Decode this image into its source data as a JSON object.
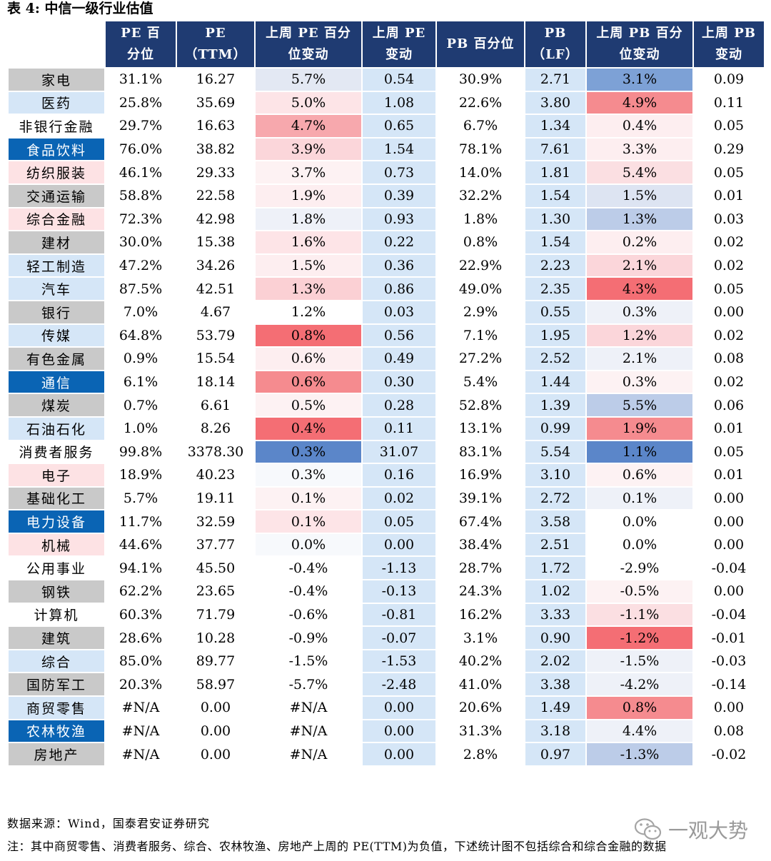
{
  "title": "表 4:  中信一级行业估值",
  "headers": [
    "",
    "PE 百\n分位",
    "PE\n（TTM）",
    "上周 PE 百分\n位变动",
    "上周 PE\n变动",
    "PB 百分位",
    "PB\n（LF）",
    "上周 PB 百分\n位变动",
    "上周 PB\n变动"
  ],
  "colors": {
    "header_bg": "#1f3b72",
    "name_gray": "#c9c9c9",
    "name_light": "#d5e6f7",
    "name_pink": "#fde2e4",
    "name_dark": "#0a64b4",
    "col_light_blue": "#d5e6f7"
  },
  "rows": [
    {
      "name": "家电",
      "name_style": "gray",
      "pe_pct": "31.1%",
      "pe": "16.27",
      "pe_pct_chg": "5.7%",
      "pe_chg": "0.54",
      "pb_pct": "30.9%",
      "pb": "2.71",
      "pb_pct_chg": "3.1%",
      "pb_chg": "0.09",
      "pe_pct_chg_color": "#e3e8f3",
      "pb_pct_chg_color": "#7da1d6"
    },
    {
      "name": "医药",
      "name_style": "light",
      "pe_pct": "25.8%",
      "pe": "35.69",
      "pe_pct_chg": "5.0%",
      "pe_chg": "1.08",
      "pb_pct": "22.6%",
      "pb": "3.80",
      "pb_pct_chg": "4.9%",
      "pb_chg": "0.11",
      "pe_pct_chg_color": "#fde4e7",
      "pb_pct_chg_color": "#f58b8f"
    },
    {
      "name": "非银行金融",
      "name_style": "white",
      "pe_pct": "29.7%",
      "pe": "16.63",
      "pe_pct_chg": "4.7%",
      "pe_chg": "0.65",
      "pb_pct": "6.7%",
      "pb": "1.34",
      "pb_pct_chg": "0.4%",
      "pb_chg": "0.05",
      "pe_pct_chg_color": "#f7a8ad",
      "pb_pct_chg_color": "#fdeef0"
    },
    {
      "name": "食品饮料",
      "name_style": "dark",
      "pe_pct": "76.0%",
      "pe": "38.82",
      "pe_pct_chg": "3.9%",
      "pe_chg": "1.54",
      "pb_pct": "78.1%",
      "pb": "7.61",
      "pb_pct_chg": "3.3%",
      "pb_chg": "0.29",
      "pe_pct_chg_color": "#fbd6da",
      "pb_pct_chg_color": "#fdeef0"
    },
    {
      "name": "纺织服装",
      "name_style": "pink",
      "pe_pct": "46.1%",
      "pe": "29.33",
      "pe_pct_chg": "3.7%",
      "pe_chg": "0.73",
      "pb_pct": "14.0%",
      "pb": "1.81",
      "pb_pct_chg": "5.4%",
      "pb_chg": "0.05",
      "pe_pct_chg_color": "#fdf2f3",
      "pb_pct_chg_color": "#fbdfe2"
    },
    {
      "name": "交通运输",
      "name_style": "gray",
      "pe_pct": "58.8%",
      "pe": "22.58",
      "pe_pct_chg": "1.9%",
      "pe_chg": "0.39",
      "pb_pct": "32.2%",
      "pb": "1.54",
      "pb_pct_chg": "1.5%",
      "pb_chg": "0.01",
      "pe_pct_chg_color": "#fdeef0",
      "pb_pct_chg_color": "#dde4f2"
    },
    {
      "name": "综合金融",
      "name_style": "pink",
      "pe_pct": "72.3%",
      "pe": "42.98",
      "pe_pct_chg": "1.8%",
      "pe_chg": "0.93",
      "pb_pct": "1.8%",
      "pb": "1.30",
      "pb_pct_chg": "1.3%",
      "pb_chg": "0.03",
      "pe_pct_chg_color": "#eef1f8",
      "pb_pct_chg_color": "#bccce8"
    },
    {
      "name": "建材",
      "name_style": "gray",
      "pe_pct": "30.0%",
      "pe": "15.38",
      "pe_pct_chg": "1.6%",
      "pe_chg": "0.22",
      "pb_pct": "0.8%",
      "pb": "1.54",
      "pb_pct_chg": "0.2%",
      "pb_chg": "0.02",
      "pe_pct_chg_color": "#fde4e7",
      "pb_pct_chg_color": "#fdeef0"
    },
    {
      "name": "轻工制造",
      "name_style": "light",
      "pe_pct": "47.2%",
      "pe": "34.26",
      "pe_pct_chg": "1.5%",
      "pe_chg": "0.36",
      "pb_pct": "22.9%",
      "pb": "2.23",
      "pb_pct_chg": "2.1%",
      "pb_chg": "0.02",
      "pe_pct_chg_color": "#fdeef0",
      "pb_pct_chg_color": "#fbd6da"
    },
    {
      "name": "汽车",
      "name_style": "light",
      "pe_pct": "87.5%",
      "pe": "42.51",
      "pe_pct_chg": "1.3%",
      "pe_chg": "0.86",
      "pb_pct": "49.0%",
      "pb": "2.35",
      "pb_pct_chg": "4.3%",
      "pb_chg": "0.05",
      "pe_pct_chg_color": "#fbd0d4",
      "pb_pct_chg_color": "#f46e74"
    },
    {
      "name": "银行",
      "name_style": "gray",
      "pe_pct": "7.0%",
      "pe": "4.67",
      "pe_pct_chg": "1.2%",
      "pe_chg": "0.03",
      "pb_pct": "2.9%",
      "pb": "0.55",
      "pb_pct_chg": "0.3%",
      "pb_chg": "0.00",
      "pe_pct_chg_color": "#ffffff",
      "pb_pct_chg_color": "#eef1f8"
    },
    {
      "name": "传媒",
      "name_style": "light",
      "pe_pct": "64.8%",
      "pe": "53.79",
      "pe_pct_chg": "0.8%",
      "pe_chg": "0.56",
      "pb_pct": "7.1%",
      "pb": "1.95",
      "pb_pct_chg": "1.2%",
      "pb_chg": "0.02",
      "pe_pct_chg_color": "#f46e74",
      "pb_pct_chg_color": "#fbd6da"
    },
    {
      "name": "有色金属",
      "name_style": "gray",
      "pe_pct": "0.9%",
      "pe": "15.54",
      "pe_pct_chg": "0.6%",
      "pe_chg": "0.49",
      "pb_pct": "27.2%",
      "pb": "2.52",
      "pb_pct_chg": "2.1%",
      "pb_chg": "0.08",
      "pe_pct_chg_color": "#fdeef0",
      "pb_pct_chg_color": "#eef1f8"
    },
    {
      "name": "通信",
      "name_style": "dark",
      "pe_pct": "6.1%",
      "pe": "18.14",
      "pe_pct_chg": "0.6%",
      "pe_chg": "0.30",
      "pb_pct": "5.4%",
      "pb": "1.44",
      "pb_pct_chg": "0.3%",
      "pb_chg": "0.02",
      "pe_pct_chg_color": "#f58b8f",
      "pb_pct_chg_color": "#fdf2f3"
    },
    {
      "name": "煤炭",
      "name_style": "gray",
      "pe_pct": "0.7%",
      "pe": "6.61",
      "pe_pct_chg": "0.5%",
      "pe_chg": "0.28",
      "pb_pct": "52.8%",
      "pb": "1.39",
      "pb_pct_chg": "5.5%",
      "pb_chg": "0.06",
      "pe_pct_chg_color": "#fdf2f3",
      "pb_pct_chg_color": "#bccce8"
    },
    {
      "name": "石油石化",
      "name_style": "light",
      "pe_pct": "1.0%",
      "pe": "8.26",
      "pe_pct_chg": "0.4%",
      "pe_chg": "0.11",
      "pb_pct": "13.1%",
      "pb": "0.99",
      "pb_pct_chg": "1.9%",
      "pb_chg": "0.01",
      "pe_pct_chg_color": "#f46e74",
      "pb_pct_chg_color": "#f58b8f"
    },
    {
      "name": "消费者服务",
      "name_style": "white",
      "pe_pct": "99.8%",
      "pe": "3378.30",
      "pe_pct_chg": "0.3%",
      "pe_chg": "31.07",
      "pb_pct": "83.1%",
      "pb": "5.54",
      "pb_pct_chg": "1.1%",
      "pb_chg": "0.05",
      "pe_pct_chg_color": "#5b86c9",
      "pb_pct_chg_color": "#5b86c9"
    },
    {
      "name": "电子",
      "name_style": "pink",
      "pe_pct": "18.9%",
      "pe": "40.23",
      "pe_pct_chg": "0.3%",
      "pe_chg": "0.16",
      "pb_pct": "16.9%",
      "pb": "3.10",
      "pb_pct_chg": "0.6%",
      "pb_chg": "0.01",
      "pe_pct_chg_color": "#f7f9fc",
      "pb_pct_chg_color": "#fdf2f3"
    },
    {
      "name": "基础化工",
      "name_style": "gray",
      "pe_pct": "5.7%",
      "pe": "19.11",
      "pe_pct_chg": "0.1%",
      "pe_chg": "0.02",
      "pb_pct": "39.1%",
      "pb": "2.72",
      "pb_pct_chg": "0.1%",
      "pb_chg": "0.00",
      "pe_pct_chg_color": "#fdf2f3",
      "pb_pct_chg_color": "#eef1f8"
    },
    {
      "name": "电力设备",
      "name_style": "dark",
      "pe_pct": "11.7%",
      "pe": "32.59",
      "pe_pct_chg": "0.1%",
      "pe_chg": "0.05",
      "pb_pct": "67.4%",
      "pb": "3.58",
      "pb_pct_chg": "0.0%",
      "pb_chg": "0.00",
      "pe_pct_chg_color": "#fde4e7",
      "pb_pct_chg_color": "#ffffff"
    },
    {
      "name": "机械",
      "name_style": "pink",
      "pe_pct": "44.6%",
      "pe": "37.77",
      "pe_pct_chg": "0.0%",
      "pe_chg": "0.00",
      "pb_pct": "38.4%",
      "pb": "2.51",
      "pb_pct_chg": "0.0%",
      "pb_chg": "0.00",
      "pe_pct_chg_color": "#f7f9fc",
      "pb_pct_chg_color": "#ffffff"
    },
    {
      "name": "公用事业",
      "name_style": "white",
      "pe_pct": "94.1%",
      "pe": "45.50",
      "pe_pct_chg": "-0.4%",
      "pe_chg": "-1.13",
      "pb_pct": "28.7%",
      "pb": "1.72",
      "pb_pct_chg": "-2.9%",
      "pb_chg": "-0.04",
      "pe_pct_chg_color": "#ffffff",
      "pb_pct_chg_color": "#ffffff"
    },
    {
      "name": "钢铁",
      "name_style": "gray",
      "pe_pct": "62.2%",
      "pe": "23.65",
      "pe_pct_chg": "-0.4%",
      "pe_chg": "-0.13",
      "pb_pct": "24.3%",
      "pb": "1.02",
      "pb_pct_chg": "-0.5%",
      "pb_chg": "0.00",
      "pe_pct_chg_color": "#ffffff",
      "pb_pct_chg_color": "#fdf2f3"
    },
    {
      "name": "计算机",
      "name_style": "white",
      "pe_pct": "60.3%",
      "pe": "71.79",
      "pe_pct_chg": "-0.6%",
      "pe_chg": "-0.81",
      "pb_pct": "16.2%",
      "pb": "3.33",
      "pb_pct_chg": "-1.1%",
      "pb_chg": "-0.04",
      "pe_pct_chg_color": "#ffffff",
      "pb_pct_chg_color": "#fbdfe2"
    },
    {
      "name": "建筑",
      "name_style": "gray",
      "pe_pct": "28.6%",
      "pe": "10.28",
      "pe_pct_chg": "-0.9%",
      "pe_chg": "-0.07",
      "pb_pct": "3.1%",
      "pb": "0.90",
      "pb_pct_chg": "-1.2%",
      "pb_chg": "-0.01",
      "pe_pct_chg_color": "#ffffff",
      "pb_pct_chg_color": "#f46e74"
    },
    {
      "name": "综合",
      "name_style": "light",
      "pe_pct": "85.0%",
      "pe": "89.77",
      "pe_pct_chg": "-1.5%",
      "pe_chg": "-1.53",
      "pb_pct": "40.2%",
      "pb": "2.02",
      "pb_pct_chg": "-1.5%",
      "pb_chg": "-0.03",
      "pe_pct_chg_color": "#ffffff",
      "pb_pct_chg_color": "#eef1f8"
    },
    {
      "name": "国防军工",
      "name_style": "gray",
      "pe_pct": "20.3%",
      "pe": "58.97",
      "pe_pct_chg": "-5.7%",
      "pe_chg": "-2.48",
      "pb_pct": "41.0%",
      "pb": "3.38",
      "pb_pct_chg": "-4.2%",
      "pb_chg": "-0.14",
      "pe_pct_chg_color": "#ffffff",
      "pb_pct_chg_color": "#eef1f8"
    },
    {
      "name": "商贸零售",
      "name_style": "light",
      "pe_pct": "#N/A",
      "pe": "0.00",
      "pe_pct_chg": "#N/A",
      "pe_chg": "0.00",
      "pb_pct": "20.6%",
      "pb": "1.49",
      "pb_pct_chg": "0.8%",
      "pb_chg": "0.00",
      "pe_pct_chg_color": "#ffffff",
      "pb_pct_chg_color": "#f58b8f"
    },
    {
      "name": "农林牧渔",
      "name_style": "dark",
      "pe_pct": "#N/A",
      "pe": "0.00",
      "pe_pct_chg": "#N/A",
      "pe_chg": "0.00",
      "pb_pct": "31.3%",
      "pb": "3.18",
      "pb_pct_chg": "4.4%",
      "pb_chg": "0.08",
      "pe_pct_chg_color": "#ffffff",
      "pb_pct_chg_color": "#eef1f8"
    },
    {
      "name": "房地产",
      "name_style": "gray",
      "pe_pct": "#N/A",
      "pe": "0.00",
      "pe_pct_chg": "#N/A",
      "pe_chg": "0.00",
      "pb_pct": "2.8%",
      "pb": "0.97",
      "pb_pct_chg": "-1.3%",
      "pb_chg": "-0.02",
      "pe_pct_chg_color": "#ffffff",
      "pb_pct_chg_color": "#bccce8"
    }
  ],
  "source": "数据来源：Wind，国泰君安证券研究",
  "note": "注：其中商贸零售、消费者服务、综合、农林牧渔、房地产上周的 PE(TTM)为负值，下述统计图不包括综合和综合金融的数据",
  "watermark": "一观大势",
  "watermark_icon": "wechat-icon"
}
